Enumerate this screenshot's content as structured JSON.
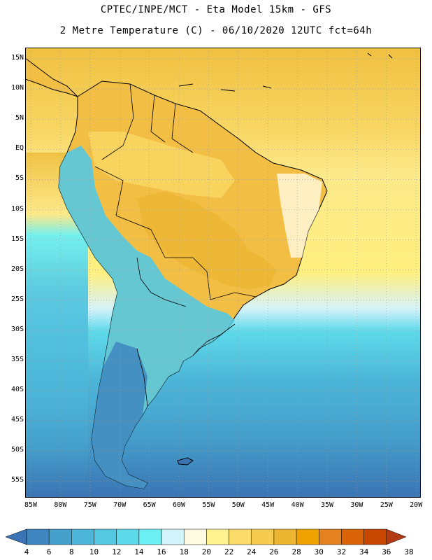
{
  "title_line1": "CPTEC/INPE/MCT -  Eta Model 15km - GFS",
  "title_line2": "2 Metre Temperature (C) - 06/10/2020 12UTC fct=64h",
  "lat_labels": [
    "15N",
    "10N",
    "5N",
    "EQ",
    "5S",
    "10S",
    "15S",
    "20S",
    "25S",
    "30S",
    "35S",
    "40S",
    "45S",
    "50S",
    "55S"
  ],
  "lon_labels": [
    "85W",
    "80W",
    "75W",
    "70W",
    "65W",
    "60W",
    "55W",
    "50W",
    "45W",
    "40W",
    "35W",
    "30W",
    "25W",
    "20W"
  ],
  "colorbar": {
    "values": [
      "4",
      "6",
      "8",
      "10",
      "12",
      "14",
      "16",
      "18",
      "20",
      "22",
      "24",
      "26",
      "28",
      "30",
      "32",
      "34",
      "36",
      "38"
    ],
    "colors": [
      "#3a74b4",
      "#3f86c0",
      "#45a0cc",
      "#4cb5d8",
      "#55c8e2",
      "#5edaea",
      "#6cf0f4",
      "#d2f4fb",
      "#fffbe2",
      "#fff290",
      "#fbdc6a",
      "#f5cc50",
      "#edb632",
      "#f0a200",
      "#e48220",
      "#dc6408",
      "#c74600",
      "#b33a12"
    ]
  },
  "legend_ticks_color": "#000000",
  "land_outline_color": "#000000"
}
